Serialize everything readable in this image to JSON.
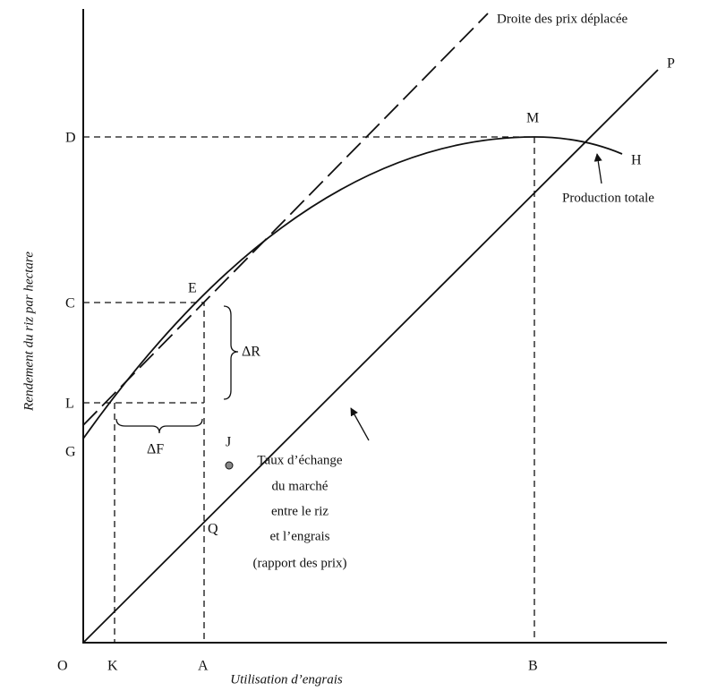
{
  "title_price_line": "Droite des prix déplacée",
  "points": {
    "P": "P",
    "D": "D",
    "M": "M",
    "H": "H",
    "E": "E",
    "C": "C",
    "L": "L",
    "G": "G",
    "J": "J",
    "Q": "Q",
    "O": "O",
    "K": "K",
    "A": "A",
    "B": "B"
  },
  "delta_r": "ΔR",
  "delta_f": "ΔF",
  "curve_label": "Production totale",
  "price_ratio_label": [
    "Taux d’échange",
    "du marché",
    "entre le riz",
    "et l’engrais",
    "(rapport des prix)"
  ],
  "x_axis_title": "Utilisation d’engrais",
  "y_axis_title": "Rendement du riz par hectare"
}
